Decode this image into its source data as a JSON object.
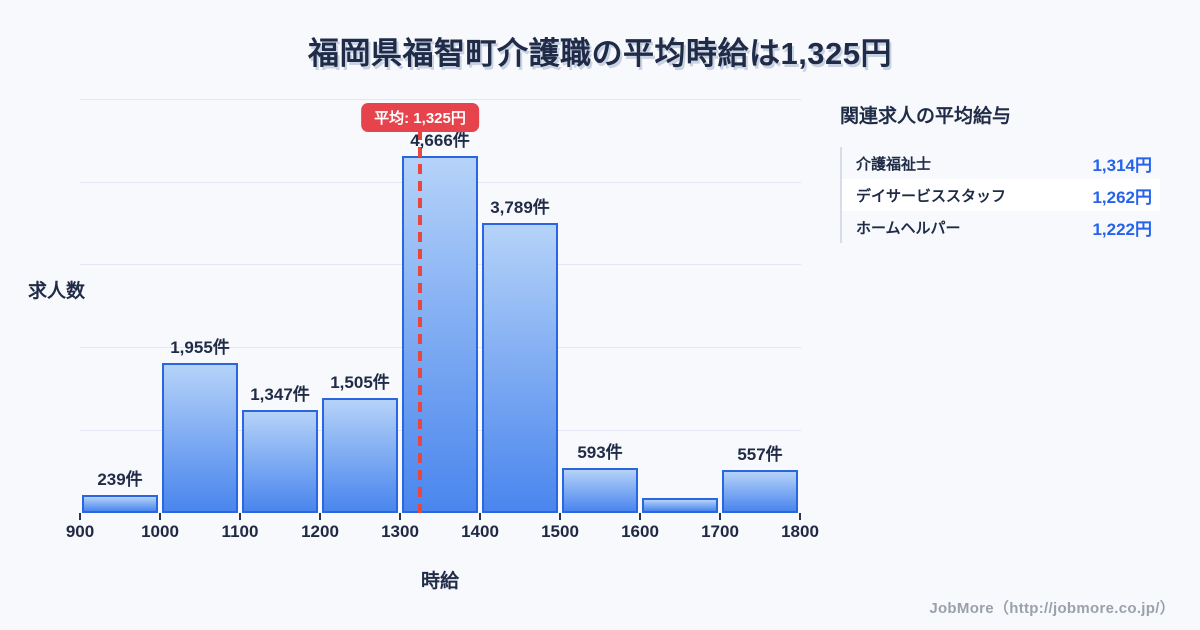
{
  "title": "福岡県福智町介護職の平均時給は1,325円",
  "chart_data": {
    "type": "bar",
    "title": "福岡県福智町介護職の平均時給は1,325円",
    "xlabel": "時給",
    "ylabel": "求人数",
    "x_ticks": [
      900,
      1000,
      1100,
      1200,
      1300,
      1400,
      1500,
      1600,
      1700,
      1800
    ],
    "xlim": [
      900,
      1800
    ],
    "ylim": [
      0,
      5400
    ],
    "grid": "horizontal-only",
    "legend": "none",
    "categories": [
      "900-1000",
      "1000-1100",
      "1100-1200",
      "1200-1300",
      "1300-1400",
      "1400-1500",
      "1500-1600",
      "1600-1700",
      "1700-1800"
    ],
    "values": [
      239,
      1955,
      1347,
      1505,
      4666,
      3789,
      593,
      200,
      557
    ],
    "bar_labels": [
      "239件",
      "1,955件",
      "1,347件",
      "1,505件",
      "4,666件",
      "3,789件",
      "593件",
      "",
      "557件"
    ],
    "average": {
      "value": 1325,
      "label": "平均: 1,325円"
    },
    "colors": {
      "background": "#f8f9fc",
      "bar_fill_top": "#b5d3f9",
      "bar_fill_bottom": "#4a86ee",
      "bar_border": "#2a66e0",
      "average_red": "#e6434c",
      "text_navy": "#1f2b47",
      "value_blue": "#2563eb",
      "gridline": "#e2e7f3"
    }
  },
  "panel": {
    "title": "関連求人の平均給与",
    "rows": [
      {
        "name": "介護福祉士",
        "wage": "1,314円"
      },
      {
        "name": "デイサービススタッフ",
        "wage": "1,262円"
      },
      {
        "name": "ホームヘルパー",
        "wage": "1,222円"
      }
    ]
  },
  "footer": {
    "credit": "JobMore（http://jobmore.co.jp/）"
  }
}
